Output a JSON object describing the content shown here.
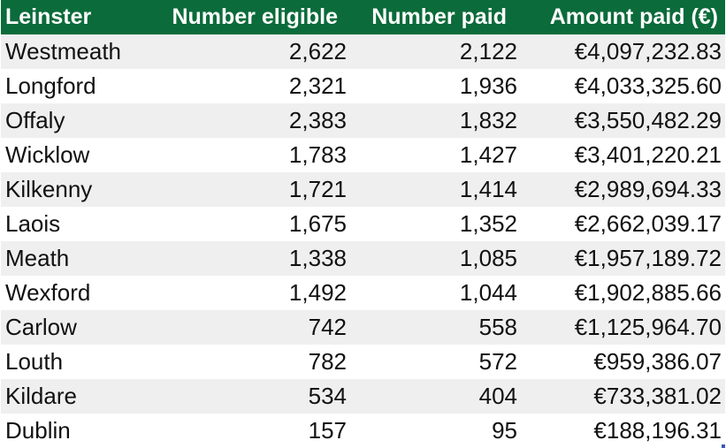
{
  "table": {
    "headers": [
      "Leinster",
      "Number eligible",
      "Number paid",
      "Amount paid (€)"
    ],
    "rows": [
      [
        "Westmeath",
        "2,622",
        "2,122",
        "€4,097,232.83"
      ],
      [
        "Longford",
        "2,321",
        "1,936",
        "€4,033,325.60"
      ],
      [
        "Offaly",
        "2,383",
        "1,832",
        "€3,550,482.29"
      ],
      [
        "Wicklow",
        "1,783",
        "1,427",
        "€3,401,220.21"
      ],
      [
        "Kilkenny",
        "1,721",
        "1,414",
        "€2,989,694.33"
      ],
      [
        "Laois",
        "1,675",
        "1,352",
        "€2,662,039.17"
      ],
      [
        "Meath",
        "1,338",
        "1,085",
        "€1,957,189.72"
      ],
      [
        "Wexford",
        "1,492",
        "1,044",
        "€1,902,885.66"
      ],
      [
        "Carlow",
        "742",
        "558",
        "€1,125,964.70"
      ],
      [
        "Louth",
        "782",
        "572",
        "€959,386.07"
      ],
      [
        "Kildare",
        "534",
        "404",
        "€733,381.02"
      ],
      [
        "Dublin",
        "157",
        "95",
        "€188,196.31"
      ]
    ]
  },
  "colors": {
    "header_bg": "#0b6b3a",
    "header_text": "#ffffff",
    "stripe": "#efefef"
  }
}
